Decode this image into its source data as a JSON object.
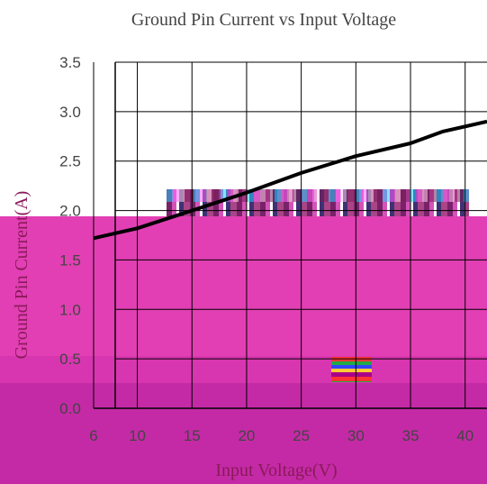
{
  "chart_data": {
    "type": "line",
    "title": "Ground Pin Current vs Input  Voltage",
    "xlabel": "Input Voltage(V)",
    "ylabel": "Ground Pin Current(A)",
    "x_ticks": [
      "6",
      "10",
      "15",
      "20",
      "25",
      "30",
      "35",
      "40"
    ],
    "y_ticks": [
      "0.0",
      "0.5",
      "1.0",
      "1.5",
      "2.0",
      "2.5",
      "3.0",
      "3.5"
    ],
    "xlim": [
      6,
      42
    ],
    "ylim": [
      0,
      3.5
    ],
    "grid": true,
    "series": [
      {
        "x": [
          6,
          10,
          15,
          20,
          25,
          30,
          35,
          38,
          42
        ],
        "y": [
          1.72,
          1.82,
          2.0,
          2.18,
          2.38,
          2.55,
          2.68,
          2.8,
          2.9
        ]
      }
    ],
    "colors": {
      "line": "#000000",
      "grid": "#000000",
      "overlay": "#e040b0",
      "overlay_dark": "#c02aa8"
    }
  }
}
